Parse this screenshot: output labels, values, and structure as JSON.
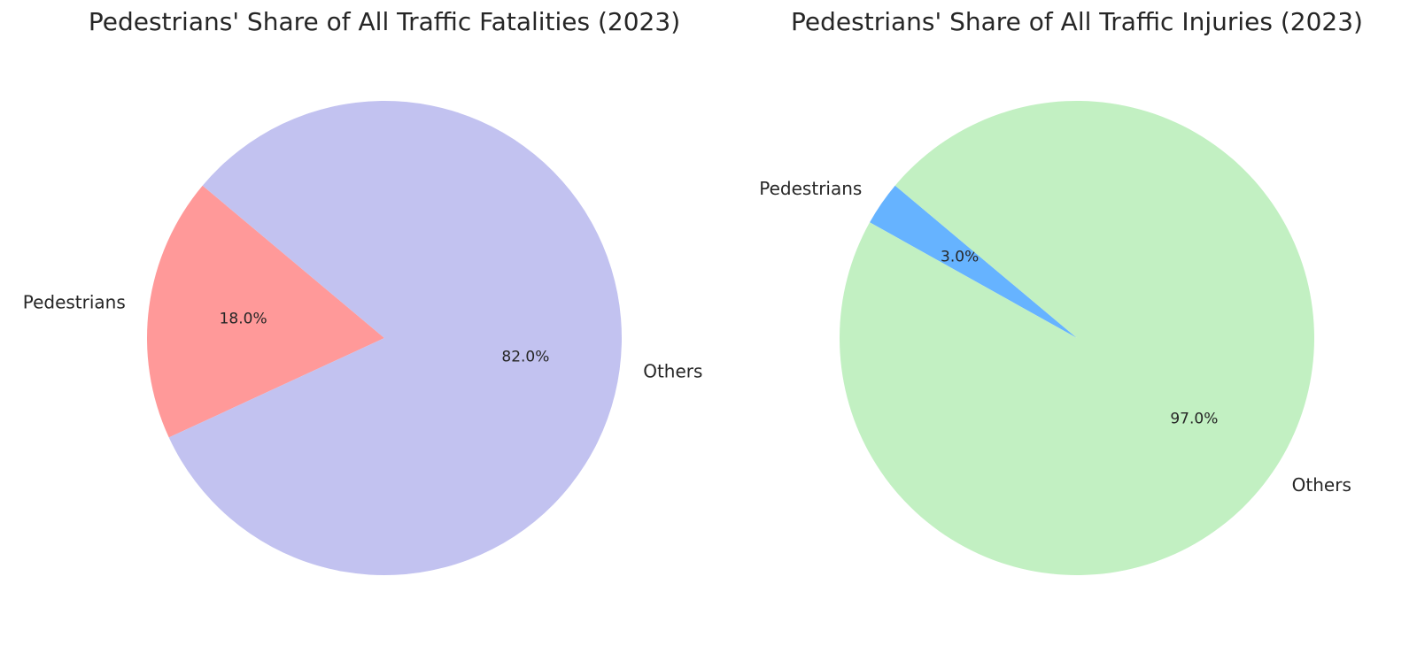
{
  "chart_data": [
    {
      "type": "pie",
      "title": "Pedestrians' Share of All Traffic Fatalities (2023)",
      "categories": [
        "Pedestrians",
        "Others"
      ],
      "values": [
        18,
        82
      ],
      "value_labels": [
        "18.0%",
        "82.0%"
      ],
      "colors": [
        "#ff9999",
        "#c2c2f0"
      ],
      "start_angle": 140
    },
    {
      "type": "pie",
      "title": "Pedestrians' Share of All Traffic Injuries (2023)",
      "categories": [
        "Pedestrians",
        "Others"
      ],
      "values": [
        3,
        97
      ],
      "value_labels": [
        "3.0%",
        "97.0%"
      ],
      "colors": [
        "#66b3ff",
        "#c2f0c2"
      ],
      "start_angle": 140
    }
  ]
}
